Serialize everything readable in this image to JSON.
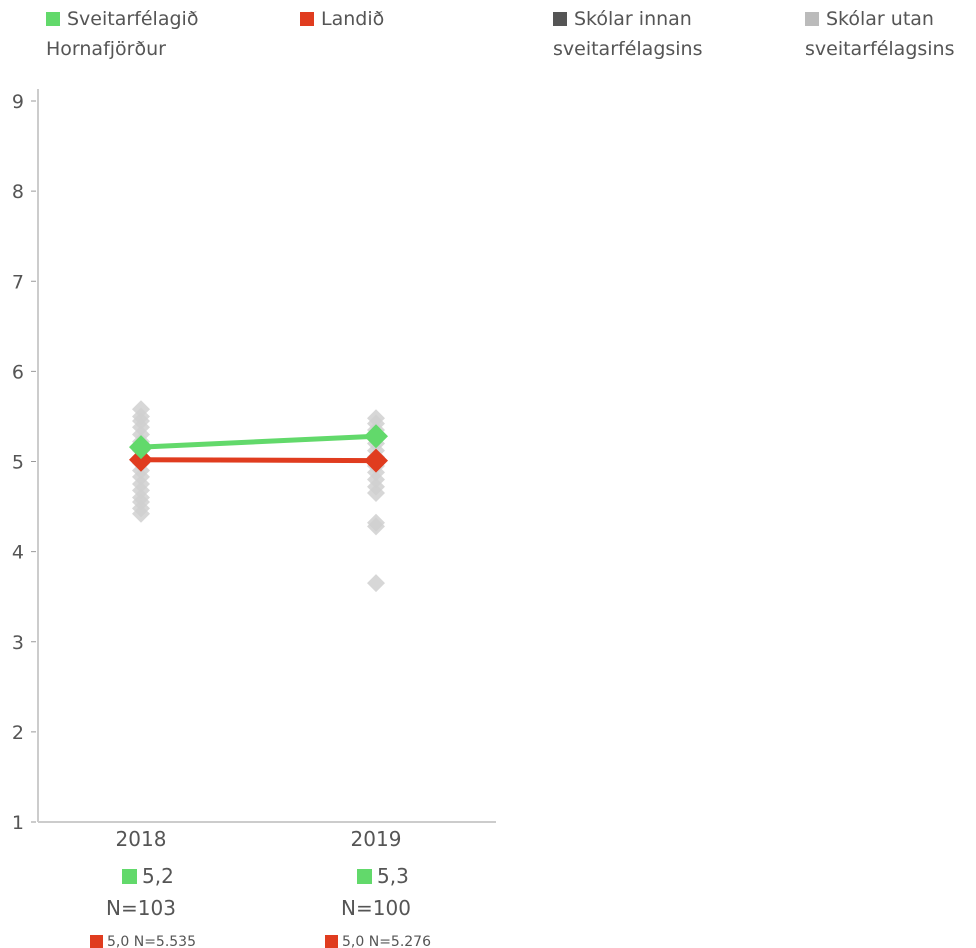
{
  "colors": {
    "municipality": "#62d96b",
    "country": "#e03c1f",
    "schools_in": "#555555",
    "schools_out": "#bbbbbb",
    "school_dots": "#d0d0d0",
    "axis": "#cccccc",
    "text": "#555555"
  },
  "legend": [
    {
      "label": "Sveitarfélagið Hornafjörður",
      "color": "#62d96b"
    },
    {
      "label": "Landið",
      "color": "#e03c1f"
    },
    {
      "label": "Skólar innan sveitarfélagsins",
      "color": "#555555"
    },
    {
      "label": "Skólar utan sveitarfélagsins",
      "color": "#bbbbbb"
    }
  ],
  "chart_data": {
    "type": "line",
    "categories": [
      "2018",
      "2019"
    ],
    "ylim": [
      1,
      9
    ],
    "yticks": [
      1,
      2,
      3,
      4,
      5,
      6,
      7,
      8,
      9
    ],
    "series": [
      {
        "name": "Sveitarfélagið Hornafjörður",
        "values": [
          5.16,
          5.28
        ],
        "color": "#62d96b"
      },
      {
        "name": "Landið",
        "values": [
          5.02,
          5.01
        ],
        "color": "#e03c1f"
      }
    ],
    "schools_outside": [
      [
        5.58,
        5.5,
        5.45,
        5.38,
        5.3,
        5.22,
        5.12,
        5.05,
        4.98,
        4.9,
        4.83,
        4.75,
        4.68,
        4.6,
        4.55,
        4.48,
        4.42
      ],
      [
        5.48,
        5.42,
        5.35,
        5.2,
        5.12,
        5.05,
        4.95,
        4.88,
        4.8,
        4.72,
        4.65,
        4.32,
        4.28,
        3.65
      ]
    ],
    "annotations": [
      {
        "municipality": "5,2",
        "municipality_n": "N=103",
        "country": "5,0 N=5.535"
      },
      {
        "municipality": "5,3",
        "municipality_n": "N=100",
        "country": "5,0 N=5.276"
      }
    ]
  }
}
